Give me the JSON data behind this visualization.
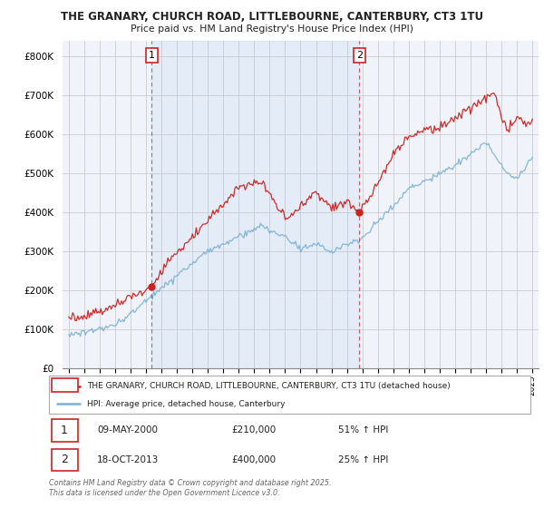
{
  "title1": "THE GRANARY, CHURCH ROAD, LITTLEBOURNE, CANTERBURY, CT3 1TU",
  "title2": "Price paid vs. HM Land Registry's House Price Index (HPI)",
  "background_color": "#ffffff",
  "plot_bg_color": "#f0f4fa",
  "grid_color": "#cccccc",
  "red_color": "#cc2222",
  "blue_color": "#7ab0d4",
  "red_label": "THE GRANARY, CHURCH ROAD, LITTLEBOURNE, CANTERBURY, CT3 1TU (detached house)",
  "blue_label": "HPI: Average price, detached house, Canterbury",
  "annotation1_date": "09-MAY-2000",
  "annotation1_price": "£210,000",
  "annotation1_hpi": "51% ↑ HPI",
  "annotation2_date": "18-OCT-2013",
  "annotation2_price": "£400,000",
  "annotation2_hpi": "25% ↑ HPI",
  "footnote": "Contains HM Land Registry data © Crown copyright and database right 2025.\nThis data is licensed under the Open Government Licence v3.0.",
  "ylim": [
    0,
    840000
  ],
  "yticks": [
    0,
    100000,
    200000,
    300000,
    400000,
    500000,
    600000,
    700000,
    800000
  ],
  "xlim_left": 1994.6,
  "xlim_right": 2025.4,
  "vline1_x": 2000.37,
  "vline2_x": 2013.8,
  "marker1_x": 2000.37,
  "marker1_y": 210000,
  "marker2_x": 2013.8,
  "marker2_y": 400000
}
